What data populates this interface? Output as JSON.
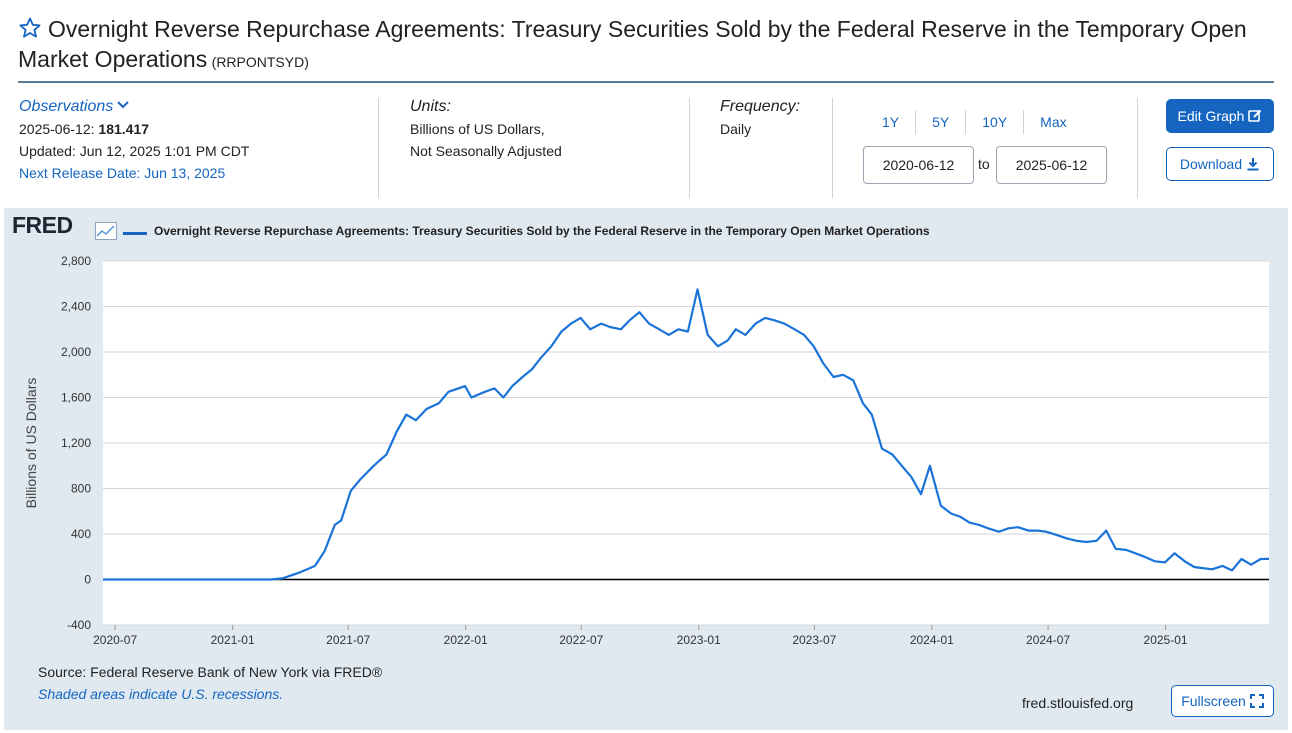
{
  "header": {
    "title": "Overnight Reverse Repurchase Agreements: Treasury Securities Sold by the Federal Reserve in the Temporary Open Market Operations",
    "series_id": "(RRPONTSYD)"
  },
  "observations": {
    "label": "Observations",
    "date": "2025-06-12:",
    "value": "181.417",
    "updated": "Updated: Jun 12, 2025 1:01 PM CDT",
    "next_release": "Next Release Date: Jun 13, 2025"
  },
  "units": {
    "label": "Units:",
    "line1": "Billions of US Dollars,",
    "line2": "Not Seasonally Adjusted"
  },
  "frequency": {
    "label": "Frequency:",
    "value": "Daily"
  },
  "range": {
    "buttons": [
      "1Y",
      "5Y",
      "10Y",
      "Max"
    ],
    "start": "2020-06-12",
    "to": "to",
    "end": "2025-06-12"
  },
  "actions": {
    "edit_graph": "Edit Graph",
    "download": "Download",
    "fullscreen": "Fullscreen"
  },
  "graph": {
    "logo": "FRED",
    "legend": "Overnight Reverse Repurchase Agreements: Treasury Securities Sold by the Federal Reserve in the Temporary Open Market Operations",
    "source": "Source: Federal Reserve Bank of New York via FRED®",
    "recession_note": "Shaded areas indicate U.S. recessions.",
    "url": "fred.stlouisfed.org"
  },
  "colors": {
    "accent": "#1565c0",
    "panel_bg": "#e1e9f0",
    "line": "#1a73d9"
  },
  "chart_data": {
    "type": "line",
    "ylabel": "Billions of US Dollars",
    "ylim": [
      -400,
      2800
    ],
    "yticks": [
      -400,
      0,
      400,
      800,
      1200,
      1600,
      2000,
      2400,
      2800
    ],
    "ytick_labels": [
      "-400",
      "0",
      "400",
      "800",
      "1,200",
      "1,600",
      "2,000",
      "2,400",
      "2,800"
    ],
    "xticks": [
      "2020-07",
      "2021-01",
      "2021-07",
      "2022-01",
      "2022-07",
      "2023-01",
      "2023-07",
      "2024-01",
      "2024-07",
      "2025-01"
    ],
    "xlim": [
      "2020-06-12",
      "2025-06-12"
    ],
    "grid": true,
    "series": [
      {
        "name": "Overnight Reverse Repurchase Agreements: Treasury Securities Sold by the Federal Reserve in the Temporary Open Market Operations",
        "x": [
          "2020-06-12",
          "2020-09-01",
          "2020-12-01",
          "2021-03-01",
          "2021-03-20",
          "2021-04-15",
          "2021-05-10",
          "2021-05-25",
          "2021-06-10",
          "2021-06-20",
          "2021-07-05",
          "2021-07-20",
          "2021-08-10",
          "2021-08-30",
          "2021-09-15",
          "2021-09-30",
          "2021-10-15",
          "2021-11-01",
          "2021-11-20",
          "2021-12-05",
          "2021-12-31",
          "2022-01-10",
          "2022-01-31",
          "2022-02-15",
          "2022-03-01",
          "2022-03-15",
          "2022-03-31",
          "2022-04-15",
          "2022-04-29",
          "2022-05-15",
          "2022-05-31",
          "2022-06-15",
          "2022-06-30",
          "2022-07-15",
          "2022-08-01",
          "2022-08-15",
          "2022-09-01",
          "2022-09-15",
          "2022-09-30",
          "2022-10-15",
          "2022-10-31",
          "2022-11-15",
          "2022-11-30",
          "2022-12-15",
          "2022-12-30",
          "2023-01-15",
          "2023-01-31",
          "2023-02-15",
          "2023-02-28",
          "2023-03-15",
          "2023-03-31",
          "2023-04-15",
          "2023-04-28",
          "2023-05-15",
          "2023-05-31",
          "2023-06-15",
          "2023-06-30",
          "2023-07-15",
          "2023-07-31",
          "2023-08-15",
          "2023-08-31",
          "2023-09-15",
          "2023-09-29",
          "2023-10-15",
          "2023-10-31",
          "2023-11-15",
          "2023-11-30",
          "2023-12-15",
          "2023-12-29",
          "2024-01-15",
          "2024-01-31",
          "2024-02-15",
          "2024-02-29",
          "2024-03-15",
          "2024-03-29",
          "2024-04-15",
          "2024-04-30",
          "2024-05-15",
          "2024-05-31",
          "2024-06-15",
          "2024-06-28",
          "2024-07-15",
          "2024-07-31",
          "2024-08-15",
          "2024-08-30",
          "2024-09-15",
          "2024-09-30",
          "2024-10-15",
          "2024-10-31",
          "2024-11-15",
          "2024-11-29",
          "2024-12-15",
          "2024-12-31",
          "2025-01-15",
          "2025-01-31",
          "2025-02-15",
          "2025-02-28",
          "2025-03-15",
          "2025-03-31",
          "2025-04-15",
          "2025-04-30",
          "2025-05-15",
          "2025-05-30",
          "2025-06-12"
        ],
        "y": [
          0,
          0,
          0,
          0,
          10,
          60,
          120,
          250,
          480,
          520,
          780,
          880,
          1000,
          1100,
          1300,
          1450,
          1400,
          1500,
          1550,
          1650,
          1700,
          1600,
          1650,
          1680,
          1600,
          1700,
          1780,
          1850,
          1950,
          2050,
          2180,
          2250,
          2300,
          2200,
          2250,
          2220,
          2200,
          2280,
          2350,
          2250,
          2200,
          2150,
          2200,
          2180,
          2550,
          2150,
          2050,
          2100,
          2200,
          2150,
          2250,
          2300,
          2280,
          2250,
          2200,
          2150,
          2050,
          1900,
          1780,
          1800,
          1750,
          1550,
          1450,
          1150,
          1100,
          1000,
          900,
          750,
          1000,
          650,
          580,
          550,
          500,
          480,
          450,
          420,
          450,
          460,
          430,
          430,
          420,
          390,
          360,
          340,
          330,
          340,
          430,
          270,
          260,
          230,
          200,
          160,
          150,
          230,
          160,
          110,
          100,
          90,
          120,
          80,
          180,
          130,
          180,
          181.417
        ]
      }
    ]
  }
}
